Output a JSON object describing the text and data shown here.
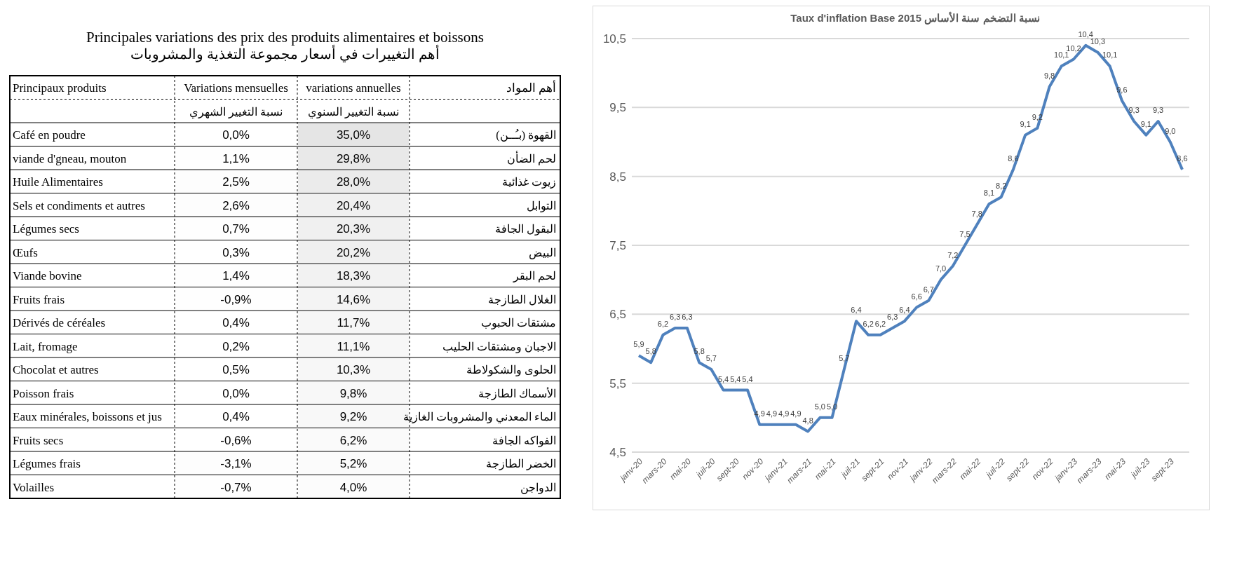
{
  "chart_data": [
    {
      "type": "heatmap",
      "title": "Principales variations des prix des produits alimentaires et boissons",
      "subtitle": "أهم التغييرات في أسعار مجموعة التغذية والمشروبات",
      "categories": [
        "Variations mensuelles",
        "variations annuelles"
      ],
      "annotations": [
        "Principaux produits",
        "أهم المواد",
        "نسبة التغيير الشهري",
        "نسبة التغيير السنوي"
      ],
      "y_categories": [
        "Café en poudre",
        "viande d'gneau, mouton",
        "Huile Alimentaires",
        "Sels et condiments et autres",
        "Légumes secs",
        "Œufs",
        "Viande bovine",
        "Fruits frais",
        "Dérivés de céréales",
        "Lait, fromage",
        "Chocolat et autres",
        "Poisson frais",
        "Eaux minérales, boissons et jus",
        "Fruits secs",
        "Légumes frais",
        "Volailles"
      ],
      "y2_categories": [
        "القهوة (بـُــن)",
        "لحم الضأن",
        "زيوت غذائية",
        "التوابل",
        "البقول الجافة",
        "البيض",
        "لحم البقر",
        "الغلال الطازجة",
        "مشتقات الحبوب",
        "الاجبان ومشتقات الحليب",
        "الحلوى والشكولاطة",
        "الأسماك الطازجة",
        "الماء المعدني والمشروبات الغازية",
        "الفواكه الجافة",
        "الخضر الطازجة",
        "الدواجن"
      ],
      "cells": [
        [
          0.0,
          35.0
        ],
        [
          1.1,
          29.8
        ],
        [
          2.5,
          28.0
        ],
        [
          2.6,
          20.4
        ],
        [
          0.7,
          20.3
        ],
        [
          0.3,
          20.2
        ],
        [
          1.4,
          18.3
        ],
        [
          -0.9,
          14.6
        ],
        [
          0.4,
          11.7
        ],
        [
          0.2,
          11.1
        ],
        [
          0.5,
          10.3
        ],
        [
          0.0,
          9.8
        ],
        [
          0.4,
          9.2
        ],
        [
          -0.6,
          6.2
        ],
        [
          -3.1,
          5.2
        ],
        [
          -0.7,
          4.0
        ]
      ],
      "cell_labels": [
        [
          "0,0%",
          "35,0%"
        ],
        [
          "1,1%",
          "29,8%"
        ],
        [
          "2,5%",
          "28,0%"
        ],
        [
          "2,6%",
          "20,4%"
        ],
        [
          "0,7%",
          "20,3%"
        ],
        [
          "0,3%",
          "20,2%"
        ],
        [
          "1,4%",
          "18,3%"
        ],
        [
          "-0,9%",
          "14,6%"
        ],
        [
          "0,4%",
          "11,7%"
        ],
        [
          "0,2%",
          "11,1%"
        ],
        [
          "0,5%",
          "10,3%"
        ],
        [
          "0,0%",
          "9,8%"
        ],
        [
          "0,4%",
          "9,2%"
        ],
        [
          "-0,6%",
          "6,2%"
        ],
        [
          "-3,1%",
          "5,2%"
        ],
        [
          "-0,7%",
          "4,0%"
        ]
      ]
    },
    {
      "type": "line",
      "title": "Taux d'inflation Base 2015 نسبة التضخم سنة الأساس",
      "categories": [
        "janv-20",
        null,
        "mars-20",
        null,
        "mai-20",
        null,
        "juil-20",
        null,
        "sept-20",
        null,
        "nov-20",
        null,
        "janv-21",
        null,
        "mars-21",
        null,
        "mai-21",
        null,
        "juil-21",
        null,
        "sept-21",
        null,
        "nov-21",
        null,
        "janv-22",
        null,
        "mars-22",
        null,
        "mai-22",
        null,
        "juil-22",
        null,
        "sept-22",
        null,
        "nov-22",
        null,
        "janv-23",
        null,
        "mars-23",
        null,
        "mai-23",
        null,
        "juil-23",
        null,
        "sept-23",
        null
      ],
      "series": [
        {
          "color": "#4f81bd",
          "values": [
            5.9,
            5.8,
            6.2,
            6.3,
            6.3,
            5.8,
            5.7,
            5.4,
            5.4,
            5.4,
            4.9,
            4.9,
            4.9,
            4.9,
            4.8,
            5.0,
            5.0,
            5.7,
            6.4,
            6.2,
            6.2,
            6.3,
            6.4,
            6.6,
            6.7,
            7.0,
            7.2,
            7.5,
            7.8,
            8.1,
            8.2,
            8.6,
            9.1,
            9.2,
            9.8,
            10.1,
            10.2,
            10.4,
            10.3,
            10.1,
            9.6,
            9.3,
            9.1,
            9.3,
            9.0,
            8.6
          ],
          "value_labels": [
            "5,9",
            "5,8",
            "6,2",
            "6,3",
            "6,3",
            "5,8",
            "5,7",
            "5,4",
            "5,4",
            "5,4",
            "4,9",
            "4,9",
            "4,9",
            "4,9",
            "4,8",
            "5,0",
            "5,0",
            "5,7",
            "6,4",
            "6,2",
            "6,2",
            "6,3",
            "6,4",
            "6,6",
            "6,7",
            "7,0",
            "7,2",
            "7,5",
            "7,8",
            "8,1",
            "8,2",
            "8,6",
            "9,1",
            "9,2",
            "9,8",
            "10,1",
            "10,2",
            "10,4",
            "10,3",
            "10,1",
            "9,6",
            "9,3",
            "9,1",
            "9,3",
            "9,0",
            "8,6"
          ]
        }
      ],
      "ylim": [
        4.5,
        10.5
      ],
      "yticks": [
        {
          "value": 4.5,
          "label": "4,5"
        },
        {
          "value": 5.5,
          "label": "5,5"
        },
        {
          "value": 6.5,
          "label": "6,5"
        },
        {
          "value": 7.5,
          "label": "7,5"
        },
        {
          "value": 8.5,
          "label": "8,5"
        },
        {
          "value": 9.5,
          "label": "9,5"
        },
        {
          "value": 10.5,
          "label": "10,5"
        }
      ],
      "grid": "y",
      "marker": "none",
      "line_style": "solid"
    }
  ]
}
